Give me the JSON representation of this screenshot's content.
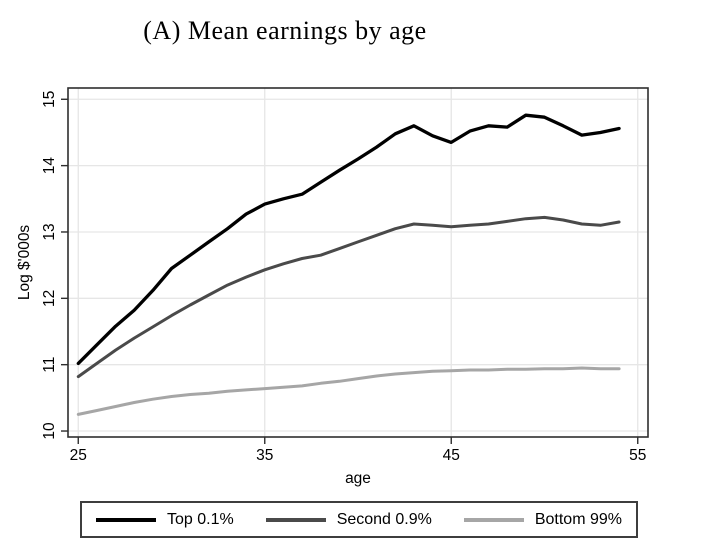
{
  "chart_data": {
    "type": "line",
    "title": "(A) Mean earnings by age",
    "xlabel": "age",
    "ylabel": "Log $'000s",
    "x_ticks": [
      25,
      35,
      45,
      55
    ],
    "y_ticks": [
      10,
      11,
      12,
      13,
      14,
      15
    ],
    "xlim": [
      24.45,
      55.55
    ],
    "ylim": [
      9.91,
      15.17
    ],
    "grid": true,
    "legend_position": "bottom",
    "x": [
      25,
      26,
      27,
      28,
      29,
      30,
      31,
      32,
      33,
      34,
      35,
      36,
      37,
      38,
      39,
      40,
      41,
      42,
      43,
      44,
      45,
      46,
      47,
      48,
      49,
      50,
      51,
      52,
      53,
      54
    ],
    "series": [
      {
        "name": "Top 0.1%",
        "color": "#000000",
        "values": [
          11.02,
          11.3,
          11.58,
          11.82,
          12.12,
          12.45,
          12.65,
          12.85,
          13.05,
          13.27,
          13.42,
          13.5,
          13.57,
          13.75,
          13.93,
          14.1,
          14.28,
          14.48,
          14.6,
          14.45,
          14.35,
          14.52,
          14.6,
          14.58,
          14.76,
          14.73,
          14.6,
          14.46,
          14.5,
          14.56
        ]
      },
      {
        "name": "Second 0.9%",
        "color": "#4a4a4a",
        "values": [
          10.82,
          11.02,
          11.22,
          11.4,
          11.57,
          11.74,
          11.9,
          12.05,
          12.2,
          12.32,
          12.43,
          12.52,
          12.6,
          12.65,
          12.75,
          12.85,
          12.95,
          13.05,
          13.12,
          13.1,
          13.08,
          13.1,
          13.12,
          13.16,
          13.2,
          13.22,
          13.18,
          13.12,
          13.1,
          13.15
        ]
      },
      {
        "name": "Bottom 99%",
        "color": "#a6a6a6",
        "values": [
          10.25,
          10.31,
          10.37,
          10.43,
          10.48,
          10.52,
          10.55,
          10.57,
          10.6,
          10.62,
          10.64,
          10.66,
          10.68,
          10.72,
          10.75,
          10.79,
          10.83,
          10.86,
          10.88,
          10.9,
          10.91,
          10.92,
          10.92,
          10.93,
          10.93,
          10.94,
          10.94,
          10.95,
          10.94,
          10.94
        ]
      }
    ],
    "colors": {
      "gridline": "#e6e6e6",
      "frame": "#2e2e2e",
      "background": "#ffffff",
      "text": "#000000"
    }
  }
}
